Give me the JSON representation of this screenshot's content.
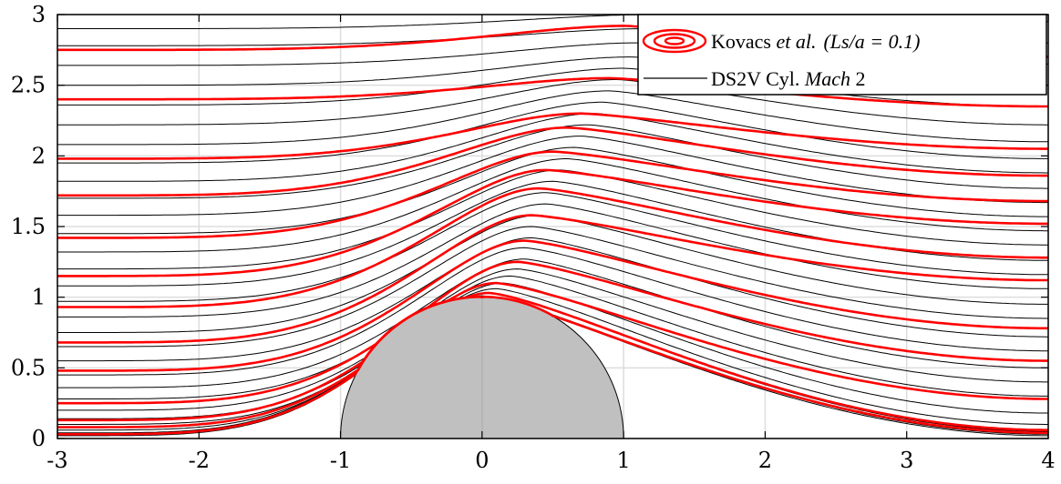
{
  "chart_data": {
    "type": "line",
    "title": "",
    "xlabel": "",
    "ylabel": "",
    "xlim": [
      -3,
      4
    ],
    "ylim": [
      0,
      3
    ],
    "grid": true,
    "x_ticks": [
      "-3",
      "-2",
      "-1",
      "0",
      "1",
      "2",
      "3",
      "4"
    ],
    "y_ticks": [
      "0",
      "0.5",
      "1",
      "1.5",
      "2",
      "2.5",
      "3"
    ],
    "legend_position": "top-right",
    "legend": {
      "entry1_prefix": "Kovacs ",
      "entry1_italic": "et al.",
      "entry1_params": "(Ls/a = 0.1)",
      "entry2_prefix": "DS2V Cyl. ",
      "entry2_italic": "Mach",
      "entry2_suffix": " 2"
    },
    "obstacle": {
      "shape": "semicircle",
      "center_x": 0,
      "radius": 1,
      "color": "#c0c0c0"
    },
    "series": [
      {
        "color": "#ff0000",
        "stroke_width": 2.6,
        "upstream_heights": [
          0.03,
          0.08,
          0.13,
          0.25,
          0.48,
          0.68,
          0.93,
          1.15,
          1.42,
          1.72,
          1.98,
          2.4,
          2.75
        ],
        "downstream_heights": [
          0.04,
          0.06,
          0.28,
          0.55,
          0.78,
          1.12,
          1.28,
          1.52,
          1.68,
          1.86,
          2.05,
          2.35,
          2.7
        ],
        "peak_heights": [
          1.0,
          1.03,
          1.1,
          1.25,
          1.4,
          1.58,
          1.77,
          1.9,
          2.03,
          2.2,
          2.3,
          2.55,
          2.92
        ],
        "peak_x": [
          0.0,
          0.05,
          0.1,
          0.25,
          0.3,
          0.35,
          0.4,
          0.45,
          0.5,
          0.6,
          0.7,
          0.9,
          1.0
        ]
      },
      {
        "color": "#000000",
        "stroke_width": 1.0,
        "upstream_heights": [
          0.02,
          0.04,
          0.06,
          0.1,
          0.14,
          0.2,
          0.28,
          0.36,
          0.45,
          0.55,
          0.65,
          0.75,
          0.86,
          0.97,
          1.08,
          1.2,
          1.32,
          1.45,
          1.58,
          1.7,
          1.82,
          1.95,
          2.08,
          2.22,
          2.36,
          2.5,
          2.64,
          2.78,
          2.9
        ],
        "downstream_heights": [
          0.02,
          0.03,
          0.05,
          0.1,
          0.18,
          0.3,
          0.4,
          0.5,
          0.62,
          0.72,
          0.85,
          0.95,
          1.06,
          1.16,
          1.26,
          1.37,
          1.47,
          1.57,
          1.67,
          1.77,
          1.88,
          1.98,
          2.1,
          2.22,
          2.35,
          2.5,
          2.65,
          2.8,
          2.95
        ],
        "peak_heights": [
          1.0,
          1.01,
          1.03,
          1.06,
          1.1,
          1.15,
          1.2,
          1.27,
          1.35,
          1.42,
          1.5,
          1.58,
          1.66,
          1.74,
          1.82,
          1.9,
          1.98,
          2.06,
          2.14,
          2.22,
          2.3,
          2.38,
          2.46,
          2.54,
          2.62,
          2.7,
          2.8,
          2.9,
          3.0
        ],
        "peak_x": [
          0.0,
          0.0,
          0.05,
          0.1,
          0.15,
          0.2,
          0.25,
          0.3,
          0.3,
          0.35,
          0.35,
          0.4,
          0.45,
          0.45,
          0.5,
          0.55,
          0.6,
          0.65,
          0.7,
          0.75,
          0.8,
          0.85,
          0.9,
          0.95,
          1.0,
          1.05,
          1.1,
          1.15,
          1.2
        ]
      }
    ]
  }
}
